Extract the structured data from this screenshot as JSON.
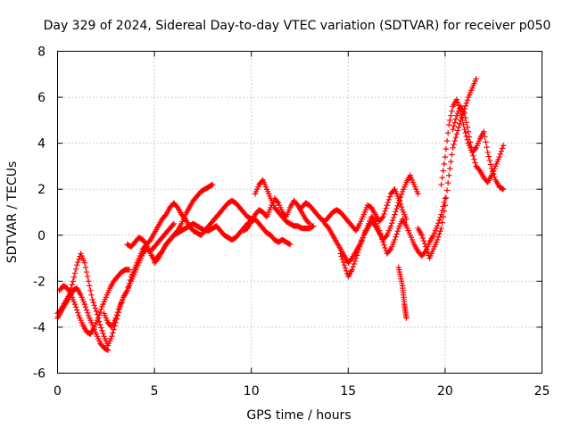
{
  "chart_data": {
    "type": "scatter",
    "title": "Day 329 of 2024, Sidereal Day-to-day VTEC variation (SDTVAR) for receiver p050",
    "xlabel": "GPS time / hours",
    "ylabel": "SDTVAR / TECUs",
    "xlim": [
      0,
      25
    ],
    "ylim": [
      -6,
      8
    ],
    "xticks": [
      0,
      5,
      10,
      15,
      20,
      25
    ],
    "yticks": [
      -6,
      -4,
      -2,
      0,
      2,
      4,
      6,
      8
    ],
    "xtick_labels": [
      "0",
      "5",
      "10",
      "15",
      "20",
      "25"
    ],
    "ytick_labels": [
      "-6",
      "-4",
      "-2",
      "0",
      "2",
      "4",
      "6",
      "8"
    ],
    "grid": true,
    "marker": "+",
    "color": "#ff0000",
    "series": [
      {
        "name": "track-1",
        "x": [
          0.0,
          0.2,
          0.4,
          0.6,
          0.8,
          1.0,
          1.2,
          1.4,
          1.6,
          1.8,
          2.0,
          2.2,
          2.4,
          2.6,
          2.8,
          3.0,
          3.2,
          3.4,
          3.6,
          3.8,
          4.0,
          4.2,
          4.4,
          4.6,
          4.8,
          5.0,
          5.2,
          5.4,
          5.6,
          5.8,
          6.0
        ],
        "y": [
          -3.4,
          -3.2,
          -2.9,
          -2.6,
          -2.0,
          -1.3,
          -0.8,
          -1.2,
          -2.0,
          -2.8,
          -3.3,
          -3.9,
          -4.4,
          -4.8,
          -4.4,
          -3.8,
          -3.2,
          -2.7,
          -2.4,
          -2.0,
          -1.6,
          -1.2,
          -0.8,
          -0.6,
          -0.7,
          -0.5,
          -0.3,
          -0.1,
          0.1,
          0.3,
          0.5
        ]
      },
      {
        "name": "track-2",
        "x": [
          0.1,
          0.3,
          0.5,
          0.7,
          0.9,
          1.1,
          1.3,
          1.5,
          1.7,
          1.9,
          2.1,
          2.3,
          2.5,
          2.7,
          2.9,
          3.1,
          3.3,
          3.5,
          3.7
        ],
        "y": [
          -2.4,
          -2.2,
          -2.3,
          -2.6,
          -3.0,
          -3.5,
          -3.9,
          -4.2,
          -4.3,
          -4.0,
          -3.6,
          -3.1,
          -2.7,
          -2.3,
          -2.0,
          -1.8,
          -1.6,
          -1.5,
          -1.5
        ]
      },
      {
        "name": "track-3",
        "x": [
          0.0,
          0.2,
          0.4,
          0.6,
          0.8,
          1.0,
          1.2,
          1.4,
          1.6,
          1.8,
          2.0,
          2.2,
          2.4,
          2.6
        ],
        "y": [
          -3.6,
          -3.3,
          -3.0,
          -2.7,
          -2.4,
          -2.3,
          -2.6,
          -3.0,
          -3.5,
          -3.9,
          -4.3,
          -4.7,
          -4.9,
          -5.0
        ]
      },
      {
        "name": "track-4",
        "x": [
          2.4,
          2.6,
          2.8,
          3.0,
          3.2,
          3.4,
          3.6,
          3.8,
          4.0,
          4.2,
          4.4,
          4.6,
          4.8,
          5.0,
          5.2,
          5.4,
          5.6,
          5.8,
          6.0,
          6.2,
          6.4,
          6.6,
          6.8,
          7.0,
          7.2,
          7.4,
          7.6,
          7.8,
          8.0
        ],
        "y": [
          -3.4,
          -3.8,
          -4.0,
          -3.6,
          -3.1,
          -2.7,
          -2.4,
          -1.8,
          -1.4,
          -1.0,
          -0.6,
          -0.4,
          -0.8,
          -1.1,
          -0.9,
          -0.7,
          -0.4,
          -0.2,
          0.0,
          0.2,
          0.5,
          0.9,
          1.2,
          1.5,
          1.7,
          1.9,
          2.0,
          2.1,
          2.2
        ]
      },
      {
        "name": "track-5",
        "x": [
          3.6,
          3.8,
          4.0,
          4.2,
          4.4,
          4.6,
          4.8,
          5.0,
          5.2,
          5.4,
          5.6,
          5.8,
          6.0,
          6.2,
          6.4,
          6.6,
          6.8,
          7.0,
          7.2,
          7.4,
          7.6,
          7.8,
          8.0,
          8.2,
          8.4,
          8.6,
          8.8,
          9.0,
          9.2,
          9.4,
          9.6,
          9.8,
          10.0
        ],
        "y": [
          -0.4,
          -0.5,
          -0.3,
          -0.1,
          -0.2,
          -0.4,
          -0.2,
          0.1,
          0.4,
          0.7,
          0.9,
          1.2,
          1.4,
          1.2,
          0.9,
          0.7,
          0.4,
          0.2,
          0.1,
          0.0,
          0.2,
          0.4,
          0.6,
          0.8,
          1.0,
          1.2,
          1.4,
          1.5,
          1.4,
          1.2,
          1.0,
          0.8,
          0.7
        ]
      },
      {
        "name": "track-6",
        "x": [
          5.0,
          5.2,
          5.4,
          5.6,
          5.8,
          6.0,
          6.2,
          6.4,
          6.6,
          6.8,
          7.0,
          7.2,
          7.4,
          7.6,
          7.8,
          8.0,
          8.2,
          8.4,
          8.6,
          8.8,
          9.0,
          9.2,
          9.4,
          9.6,
          9.8,
          10.0,
          10.2,
          10.4,
          10.6,
          10.8,
          11.0,
          11.2,
          11.4,
          11.6,
          11.8,
          12.0
        ],
        "y": [
          -1.2,
          -1.0,
          -0.7,
          -0.4,
          -0.2,
          0.0,
          0.1,
          0.2,
          0.3,
          0.4,
          0.5,
          0.4,
          0.3,
          0.2,
          0.2,
          0.3,
          0.4,
          0.2,
          0.0,
          -0.1,
          -0.2,
          -0.1,
          0.1,
          0.3,
          0.5,
          0.6,
          0.7,
          0.5,
          0.3,
          0.1,
          0.0,
          -0.2,
          -0.3,
          -0.2,
          -0.3,
          -0.4
        ]
      },
      {
        "name": "track-7",
        "x": [
          9.6,
          9.8,
          10.0,
          10.2,
          10.4,
          10.6,
          10.8,
          11.0,
          11.2,
          11.4,
          11.6,
          11.8,
          12.0,
          12.2,
          12.4,
          12.6,
          12.8,
          13.0
        ],
        "y": [
          0.2,
          0.3,
          0.6,
          0.9,
          1.1,
          1.0,
          0.8,
          1.2,
          1.6,
          1.4,
          1.0,
          0.8,
          1.2,
          1.5,
          1.3,
          1.0,
          0.7,
          0.5
        ]
      },
      {
        "name": "track-8",
        "x": [
          10.2,
          10.4,
          10.6,
          10.8,
          11.0,
          11.2,
          11.4,
          11.6,
          11.8,
          12.0,
          12.2,
          12.4,
          12.6,
          12.8,
          13.0,
          13.2
        ],
        "y": [
          1.8,
          2.2,
          2.4,
          2.0,
          1.6,
          1.2,
          1.0,
          0.8,
          0.6,
          0.5,
          0.4,
          0.4,
          0.3,
          0.3,
          0.3,
          0.4
        ]
      },
      {
        "name": "track-9",
        "x": [
          12.6,
          12.8,
          13.0,
          13.2,
          13.4,
          13.6,
          13.8,
          14.0,
          14.2,
          14.4,
          14.6,
          14.8,
          15.0,
          15.2,
          15.4,
          15.6,
          15.8,
          16.0,
          16.2,
          16.4,
          16.6,
          16.8,
          17.0,
          17.2,
          17.4,
          17.6,
          17.8,
          18.0
        ],
        "y": [
          1.2,
          1.4,
          1.3,
          1.1,
          0.9,
          0.7,
          0.6,
          0.8,
          1.0,
          1.1,
          1.0,
          0.8,
          0.6,
          0.4,
          0.2,
          0.5,
          0.9,
          1.3,
          1.2,
          0.9,
          0.6,
          0.8,
          1.3,
          1.8,
          2.0,
          1.6,
          1.1,
          0.7
        ]
      },
      {
        "name": "track-10",
        "x": [
          13.8,
          14.0,
          14.2,
          14.4,
          14.6,
          14.8,
          15.0,
          15.2,
          15.4,
          15.6,
          15.8,
          16.0,
          16.2,
          16.4,
          16.6,
          16.8,
          17.0,
          17.2,
          17.4,
          17.6,
          17.8,
          18.0,
          18.2,
          18.4,
          18.6
        ],
        "y": [
          0.5,
          0.3,
          0.0,
          -0.3,
          -0.6,
          -0.9,
          -1.2,
          -1.0,
          -0.7,
          -0.4,
          0.0,
          0.3,
          0.6,
          0.4,
          0.1,
          -0.2,
          0.0,
          0.4,
          0.9,
          1.4,
          1.9,
          2.3,
          2.6,
          2.2,
          1.8
        ]
      },
      {
        "name": "track-11",
        "x": [
          14.6,
          14.8,
          15.0,
          15.2,
          15.4,
          15.6,
          15.8,
          16.0,
          16.2,
          16.4,
          16.6,
          16.8,
          17.0,
          17.2,
          17.4,
          17.6,
          17.8,
          18.0,
          18.2,
          18.4,
          18.6,
          18.8,
          19.0,
          19.2,
          19.4,
          19.6,
          19.8,
          20.0
        ],
        "y": [
          -0.8,
          -1.3,
          -1.8,
          -1.5,
          -1.0,
          -0.5,
          0.0,
          0.4,
          0.8,
          0.6,
          0.2,
          -0.3,
          -0.8,
          -0.6,
          -0.2,
          0.3,
          0.7,
          0.4,
          0.0,
          -0.4,
          -0.7,
          -0.9,
          -0.7,
          -0.3,
          0.0,
          0.4,
          0.9,
          1.6
        ]
      },
      {
        "name": "track-12",
        "x": [
          17.6,
          17.7,
          17.8,
          17.85,
          17.9,
          17.95,
          18.0
        ],
        "y": [
          -1.4,
          -1.8,
          -2.2,
          -2.6,
          -3.0,
          -3.3,
          -3.6
        ]
      },
      {
        "name": "track-13",
        "x": [
          18.6,
          18.8,
          19.0,
          19.2,
          19.4,
          19.6,
          19.8,
          20.0,
          20.2,
          20.4,
          20.6,
          20.8,
          21.0,
          21.2,
          21.4,
          21.6
        ],
        "y": [
          0.3,
          0.0,
          -0.5,
          -1.0,
          -0.6,
          -0.2,
          0.3,
          1.3,
          2.6,
          3.8,
          4.4,
          5.0,
          5.5,
          6.0,
          6.4,
          6.8
        ]
      },
      {
        "name": "track-14",
        "x": [
          19.8,
          20.0,
          20.2,
          20.4,
          20.6,
          20.8,
          21.0,
          21.2,
          21.4,
          21.6,
          21.8,
          22.0,
          22.2,
          22.4,
          22.6,
          22.8,
          23.0
        ],
        "y": [
          2.2,
          3.4,
          4.8,
          5.6,
          5.9,
          5.4,
          4.6,
          4.0,
          3.6,
          3.8,
          4.2,
          4.5,
          3.6,
          2.9,
          2.4,
          2.1,
          2.0
        ]
      },
      {
        "name": "track-15",
        "x": [
          20.4,
          20.6,
          20.8,
          21.0,
          21.2,
          21.4,
          21.6,
          21.8,
          22.0,
          22.2,
          22.4,
          22.6,
          22.8,
          23.0
        ],
        "y": [
          4.6,
          5.2,
          5.6,
          5.3,
          4.5,
          3.6,
          3.0,
          2.8,
          2.5,
          2.3,
          2.6,
          3.0,
          3.4,
          3.9
        ]
      }
    ]
  }
}
